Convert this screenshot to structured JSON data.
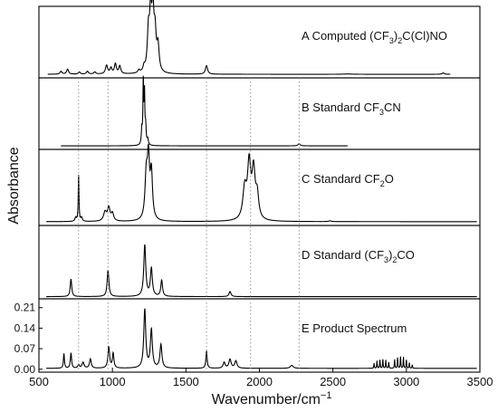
{
  "chart_data": {
    "type": "line",
    "xlabel": "Wavenumber/cm",
    "xlabel_sup": "−1",
    "ylabel": "Absorbance",
    "xlim": [
      500,
      3500
    ],
    "xticks": [
      "500",
      "1000",
      "1500",
      "2000",
      "2500",
      "3000",
      "3500"
    ],
    "grid": false,
    "reference_lines_x": [
      770,
      970,
      1640,
      1940,
      2270
    ],
    "panels": [
      {
        "label_parts": [
          "A Computed (CF",
          "3",
          ")",
          "2",
          "C(Cl)NO"
        ],
        "x_range": [
          560,
          3300
        ],
        "ylim": [
          0,
          1.0
        ],
        "baseline": 0.05,
        "peaks": [
          {
            "x": 650,
            "h": 0.04,
            "w": 8
          },
          {
            "x": 695,
            "h": 0.07,
            "w": 8
          },
          {
            "x": 775,
            "h": 0.03,
            "w": 8
          },
          {
            "x": 830,
            "h": 0.04,
            "w": 8
          },
          {
            "x": 880,
            "h": 0.03,
            "w": 8
          },
          {
            "x": 960,
            "h": 0.12,
            "w": 9
          },
          {
            "x": 990,
            "h": 0.08,
            "w": 8
          },
          {
            "x": 1020,
            "h": 0.14,
            "w": 8
          },
          {
            "x": 1050,
            "h": 0.11,
            "w": 8
          },
          {
            "x": 1180,
            "h": 0.04,
            "w": 8
          },
          {
            "x": 1215,
            "h": 0.07,
            "w": 8
          },
          {
            "x": 1245,
            "h": 0.55,
            "w": 9
          },
          {
            "x": 1260,
            "h": 0.75,
            "w": 8
          },
          {
            "x": 1275,
            "h": 0.82,
            "w": 8
          },
          {
            "x": 1290,
            "h": 0.5,
            "w": 9
          },
          {
            "x": 1310,
            "h": 0.35,
            "w": 9
          },
          {
            "x": 1640,
            "h": 0.12,
            "w": 9
          },
          {
            "x": 2600,
            "h": 0.005,
            "w": 30
          },
          {
            "x": 3250,
            "h": 0.02,
            "w": 8
          }
        ]
      },
      {
        "label_parts": [
          "B Standard CF",
          "3",
          "CN"
        ],
        "x_range": [
          650,
          2600
        ],
        "ylim": [
          0,
          1.0
        ],
        "baseline": 0.05,
        "peaks": [
          {
            "x": 1200,
            "h": 0.2,
            "w": 4
          },
          {
            "x": 1210,
            "h": 0.88,
            "w": 3
          },
          {
            "x": 1218,
            "h": 0.7,
            "w": 3
          },
          {
            "x": 1226,
            "h": 0.25,
            "w": 4
          },
          {
            "x": 1240,
            "h": 0.08,
            "w": 5
          },
          {
            "x": 2270,
            "h": 0.03,
            "w": 8
          }
        ]
      },
      {
        "label_parts": [
          "C Standard CF",
          "2",
          "O"
        ],
        "x_range": [
          550,
          3480
        ],
        "ylim": [
          0,
          1.0
        ],
        "baseline": 0.05,
        "peaks": [
          {
            "x": 750,
            "h": 0.05,
            "w": 6
          },
          {
            "x": 770,
            "h": 0.62,
            "w": 3
          },
          {
            "x": 790,
            "h": 0.05,
            "w": 6
          },
          {
            "x": 950,
            "h": 0.12,
            "w": 12
          },
          {
            "x": 975,
            "h": 0.17,
            "w": 10
          },
          {
            "x": 1000,
            "h": 0.1,
            "w": 10
          },
          {
            "x": 1230,
            "h": 0.55,
            "w": 10
          },
          {
            "x": 1245,
            "h": 0.75,
            "w": 9
          },
          {
            "x": 1265,
            "h": 0.6,
            "w": 9
          },
          {
            "x": 1900,
            "h": 0.4,
            "w": 15
          },
          {
            "x": 1930,
            "h": 0.7,
            "w": 13
          },
          {
            "x": 1960,
            "h": 0.62,
            "w": 13
          },
          {
            "x": 1985,
            "h": 0.3,
            "w": 12
          },
          {
            "x": 2480,
            "h": 0.01,
            "w": 10
          }
        ]
      },
      {
        "label_parts": [
          "D Standard (CF",
          "3",
          ")",
          "2",
          "CO"
        ],
        "x_range": [
          550,
          3480
        ],
        "ylim": [
          0,
          1.0
        ],
        "baseline": 0.03,
        "peaks": [
          {
            "x": 718,
            "h": 0.24,
            "w": 6
          },
          {
            "x": 970,
            "h": 0.36,
            "w": 7
          },
          {
            "x": 1220,
            "h": 0.7,
            "w": 8
          },
          {
            "x": 1265,
            "h": 0.38,
            "w": 8
          },
          {
            "x": 1335,
            "h": 0.22,
            "w": 7
          },
          {
            "x": 1800,
            "h": 0.07,
            "w": 8
          }
        ]
      },
      {
        "label_parts": [
          "E Product Spectrum"
        ],
        "x_range": [
          550,
          3480
        ],
        "ylim": [
          -0.01,
          0.24
        ],
        "yticks": [
          0.0,
          0.07,
          0.14,
          0.21
        ],
        "yticklabels": [
          "0.00",
          "0.07",
          "0.14",
          "0.21"
        ],
        "baseline": 0.003,
        "peaks": [
          {
            "x": 670,
            "h": 0.05,
            "w": 4
          },
          {
            "x": 718,
            "h": 0.052,
            "w": 5
          },
          {
            "x": 770,
            "h": 0.012,
            "w": 6
          },
          {
            "x": 800,
            "h": 0.02,
            "w": 8
          },
          {
            "x": 850,
            "h": 0.032,
            "w": 7
          },
          {
            "x": 975,
            "h": 0.072,
            "w": 7
          },
          {
            "x": 1005,
            "h": 0.05,
            "w": 6
          },
          {
            "x": 1220,
            "h": 0.2,
            "w": 8
          },
          {
            "x": 1265,
            "h": 0.13,
            "w": 8
          },
          {
            "x": 1330,
            "h": 0.08,
            "w": 8
          },
          {
            "x": 1640,
            "h": 0.058,
            "w": 5
          },
          {
            "x": 1760,
            "h": 0.02,
            "w": 8
          },
          {
            "x": 1800,
            "h": 0.03,
            "w": 9
          },
          {
            "x": 1840,
            "h": 0.025,
            "w": 9
          },
          {
            "x": 2220,
            "h": 0.01,
            "w": 12
          },
          {
            "x": 2780,
            "h": 0.018,
            "w": 2
          },
          {
            "x": 2800,
            "h": 0.025,
            "w": 2
          },
          {
            "x": 2820,
            "h": 0.03,
            "w": 2
          },
          {
            "x": 2840,
            "h": 0.032,
            "w": 2
          },
          {
            "x": 2860,
            "h": 0.028,
            "w": 2
          },
          {
            "x": 2880,
            "h": 0.022,
            "w": 2
          },
          {
            "x": 2920,
            "h": 0.03,
            "w": 2
          },
          {
            "x": 2940,
            "h": 0.038,
            "w": 2
          },
          {
            "x": 2960,
            "h": 0.042,
            "w": 2
          },
          {
            "x": 2980,
            "h": 0.038,
            "w": 2
          },
          {
            "x": 3000,
            "h": 0.03,
            "w": 2
          },
          {
            "x": 3020,
            "h": 0.02,
            "w": 2
          },
          {
            "x": 3040,
            "h": 0.012,
            "w": 2
          }
        ]
      }
    ]
  }
}
